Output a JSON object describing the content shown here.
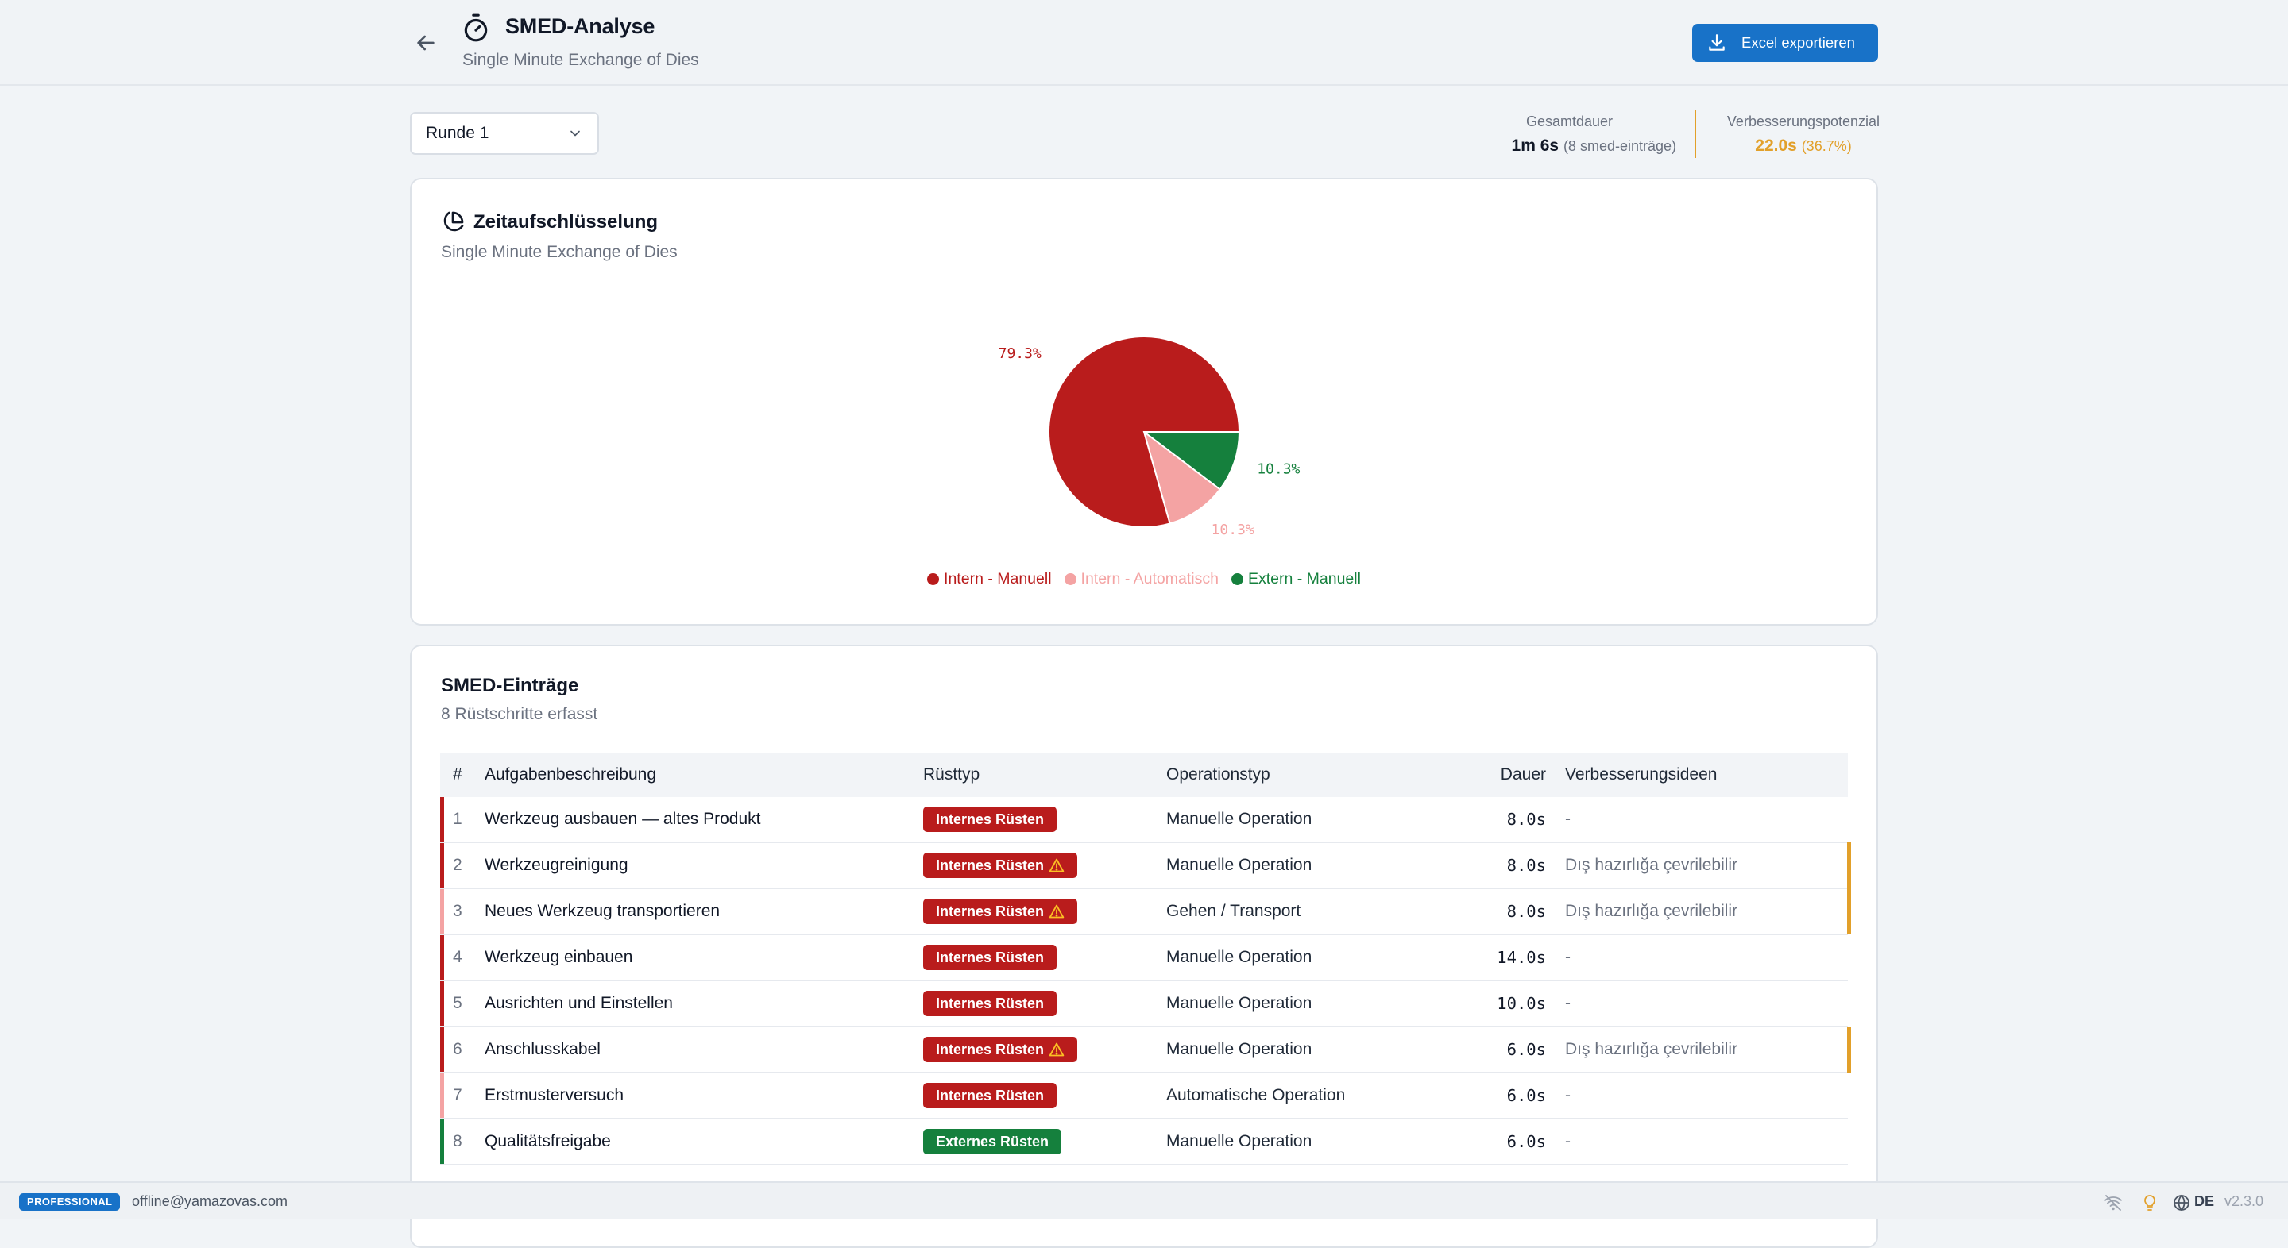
{
  "header": {
    "title": "SMED-Analyse",
    "subtitle": "Single Minute Exchange of Dies",
    "export_label": "Excel exportieren"
  },
  "toolbar": {
    "round_selected": "Runde 1",
    "total_label": "Gesamtdauer",
    "total_value": "1m 6s",
    "total_note": "(8 smed-einträge)",
    "improve_label": "Verbesserungspotenzial",
    "improve_value": "22.0s",
    "improve_note": "(36.7%)"
  },
  "chart_card": {
    "title": "Zeitaufschlüsselung",
    "subtitle": "Single Minute Exchange of Dies"
  },
  "chart_data": {
    "type": "pie",
    "slices": [
      {
        "label": "Intern - Manuell",
        "value": 79.3,
        "color": "#b91c1c",
        "value_label": "79.3%"
      },
      {
        "label": "Intern - Automatisch",
        "value": 10.3,
        "color": "#f4a3a3",
        "value_label": "10.3%"
      },
      {
        "label": "Extern - Manuell",
        "value": 10.3,
        "color": "#15803d",
        "value_label": "10.3%"
      }
    ],
    "legend": "bottom-center"
  },
  "table_card": {
    "title": "SMED-Einträge",
    "subtitle": "8 Rüstschritte erfasst",
    "columns": [
      "#",
      "Aufgabenbeschreibung",
      "Rüsttyp",
      "Operationstyp",
      "Dauer",
      "Verbesserungsideen"
    ],
    "rows": [
      {
        "num": "1",
        "task": "Werkzeug ausbauen — altes Produkt",
        "setup_type": "Internes Rüsten",
        "warn": false,
        "operation": "Manuelle Operation",
        "duration": "8.0s",
        "idea": "-",
        "stripe": "#b91c1c",
        "badge_color": "#b91c1c",
        "flag": false
      },
      {
        "num": "2",
        "task": "Werkzeugreinigung",
        "setup_type": "Internes Rüsten",
        "warn": true,
        "operation": "Manuelle Operation",
        "duration": "8.0s",
        "idea": "Dış hazırlığa çevrilebilir",
        "stripe": "#b91c1c",
        "badge_color": "#b91c1c",
        "flag": true
      },
      {
        "num": "3",
        "task": "Neues Werkzeug transportieren",
        "setup_type": "Internes Rüsten",
        "warn": true,
        "operation": "Gehen / Transport",
        "duration": "8.0s",
        "idea": "Dış hazırlığa çevrilebilir",
        "stripe": "#f4a3a3",
        "badge_color": "#b91c1c",
        "flag": true
      },
      {
        "num": "4",
        "task": "Werkzeug einbauen",
        "setup_type": "Internes Rüsten",
        "warn": false,
        "operation": "Manuelle Operation",
        "duration": "14.0s",
        "idea": "-",
        "stripe": "#b91c1c",
        "badge_color": "#b91c1c",
        "flag": false
      },
      {
        "num": "5",
        "task": "Ausrichten und Einstellen",
        "setup_type": "Internes Rüsten",
        "warn": false,
        "operation": "Manuelle Operation",
        "duration": "10.0s",
        "idea": "-",
        "stripe": "#b91c1c",
        "badge_color": "#b91c1c",
        "flag": false
      },
      {
        "num": "6",
        "task": "Anschlusskabel",
        "setup_type": "Internes Rüsten",
        "warn": true,
        "operation": "Manuelle Operation",
        "duration": "6.0s",
        "idea": "Dış hazırlığa çevrilebilir",
        "stripe": "#b91c1c",
        "badge_color": "#b91c1c",
        "flag": true
      },
      {
        "num": "7",
        "task": "Erstmusterversuch",
        "setup_type": "Internes Rüsten",
        "warn": false,
        "operation": "Automatische Operation",
        "duration": "6.0s",
        "idea": "-",
        "stripe": "#f4a3a3",
        "badge_color": "#b91c1c",
        "flag": false
      },
      {
        "num": "8",
        "task": "Qualitätsfreigabe",
        "setup_type": "Externes Rüsten",
        "warn": false,
        "operation": "Manuelle Operation",
        "duration": "6.0s",
        "idea": "-",
        "stripe": "#15803d",
        "badge_color": "#15803d",
        "flag": false
      }
    ]
  },
  "footer": {
    "plan": "PROFESSIONAL",
    "email": "offline@yamazovas.com",
    "language": "DE",
    "version": "v2.3.0",
    "icons": [
      "wifi-off-icon",
      "lightbulb-icon",
      "globe-icon"
    ]
  },
  "colors": {
    "accent": "#1872c8",
    "internal_manual": "#b91c1c",
    "internal_auto": "#f4a3a3",
    "external_manual": "#15803d",
    "warning": "#e2a02a"
  }
}
